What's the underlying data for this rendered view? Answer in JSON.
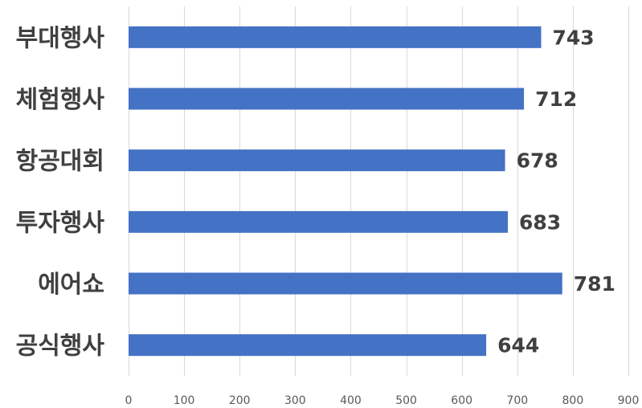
{
  "chart_data": {
    "type": "bar",
    "orientation": "horizontal",
    "categories": [
      "부대행사",
      "체험행사",
      "항공대회",
      "투자행사",
      "에어쇼",
      "공식행사"
    ],
    "values": [
      743,
      712,
      678,
      683,
      781,
      644
    ],
    "data_labels": [
      "743",
      "712",
      "678",
      "683",
      "781",
      "644"
    ],
    "xlim": [
      0,
      900
    ],
    "x_ticks": [
      0,
      100,
      200,
      300,
      400,
      500,
      600,
      700,
      800,
      900
    ],
    "x_tick_labels": [
      "0",
      "100",
      "200",
      "300",
      "400",
      "500",
      "600",
      "700",
      "800",
      "900"
    ],
    "grid": true,
    "legend": false,
    "bar_color": "#4472c4"
  }
}
